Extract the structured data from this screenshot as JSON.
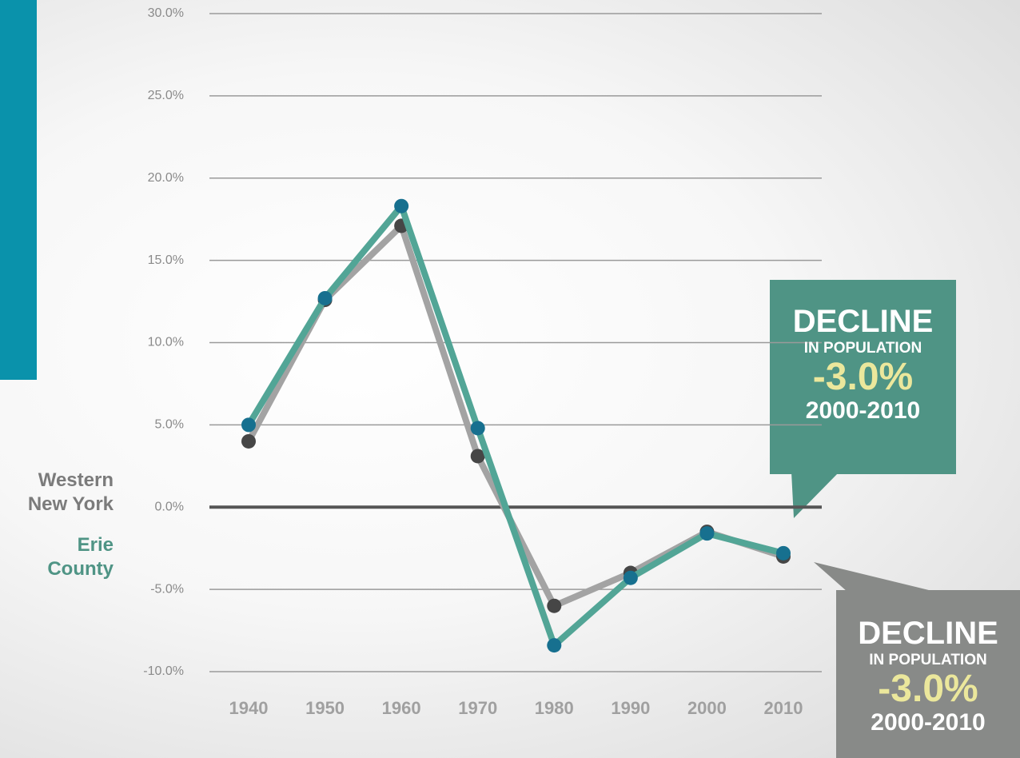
{
  "chart_data": {
    "type": "line",
    "categories": [
      "1940",
      "1950",
      "1960",
      "1970",
      "1980",
      "1990",
      "2000",
      "2010"
    ],
    "series": [
      {
        "name": "Western New York",
        "color": "#a3a3a3",
        "marker_color": "#464646",
        "values": [
          4.0,
          12.6,
          17.1,
          3.1,
          -6.0,
          -4.0,
          -1.5,
          -3.0
        ]
      },
      {
        "name": "Erie County",
        "color": "#52a596",
        "marker_color": "#17708f",
        "values": [
          5.0,
          12.7,
          18.3,
          4.8,
          -8.4,
          -4.3,
          -1.6,
          -2.8
        ]
      }
    ],
    "ylim": [
      -10,
      30
    ],
    "yticks": [
      {
        "value": -10,
        "label": "-10.0%"
      },
      {
        "value": -5,
        "label": "-5.0%"
      },
      {
        "value": 0,
        "label": "0.0%"
      },
      {
        "value": 5,
        "label": "5.0%"
      },
      {
        "value": 10,
        "label": "10.0%"
      },
      {
        "value": 15,
        "label": "15.0%"
      },
      {
        "value": 20,
        "label": "20.0%"
      },
      {
        "value": 25,
        "label": "25.0%"
      },
      {
        "value": 30,
        "label": "30.0%"
      }
    ],
    "grid": true,
    "annotations": [
      {
        "title": "DECLINE",
        "text": "IN POPULATION",
        "value": "-3.0%",
        "period": "2000-2010"
      },
      {
        "title": "DECLINE",
        "text": "IN POPULATION",
        "value": "-3.0%",
        "period": "2000-2010"
      }
    ]
  }
}
